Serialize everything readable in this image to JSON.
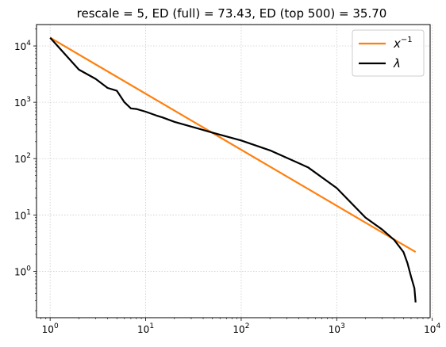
{
  "chart_data": {
    "type": "line",
    "title": "rescale = 5,     ED (full) = 73.43,   ED (top 500) = 35.70",
    "xlabel": "",
    "ylabel": "",
    "x_scale": "log",
    "y_scale": "log",
    "xlim": [
      0.72,
      9500
    ],
    "ylim": [
      0.15,
      24000
    ],
    "grid": true,
    "legend_position": "top-right",
    "x_ticks": [
      {
        "value": 1,
        "base": "10",
        "exp": "0"
      },
      {
        "value": 10,
        "base": "10",
        "exp": "1"
      },
      {
        "value": 100,
        "base": "10",
        "exp": "2"
      },
      {
        "value": 1000,
        "base": "10",
        "exp": "3"
      },
      {
        "value": 10000,
        "base": "10",
        "exp": "4"
      }
    ],
    "y_ticks": [
      {
        "value": 1,
        "base": "10",
        "exp": "0"
      },
      {
        "value": 10,
        "base": "10",
        "exp": "1"
      },
      {
        "value": 100,
        "base": "10",
        "exp": "2"
      },
      {
        "value": 1000,
        "base": "10",
        "exp": "3"
      },
      {
        "value": 10000,
        "base": "10",
        "exp": "4"
      }
    ],
    "series": [
      {
        "name": "x",
        "name_sup": "−1",
        "color": "#ff7f0e",
        "x": [
          1,
          6700
        ],
        "y": [
          14000,
          2.2
        ]
      },
      {
        "name": "λ",
        "color": "#000000",
        "x": [
          1,
          2,
          3,
          4,
          5,
          6,
          7,
          8,
          10,
          13,
          15,
          20,
          30,
          50,
          100,
          200,
          500,
          1000,
          2000,
          3000,
          4000,
          5000,
          5500,
          6000,
          6500,
          6700
        ],
        "y": [
          14000,
          3800,
          2600,
          1800,
          1600,
          1000,
          780,
          760,
          680,
          580,
          540,
          450,
          370,
          290,
          210,
          140,
          70,
          30,
          9,
          5.5,
          3.6,
          2.2,
          1.4,
          0.8,
          0.5,
          0.28
        ]
      }
    ]
  }
}
